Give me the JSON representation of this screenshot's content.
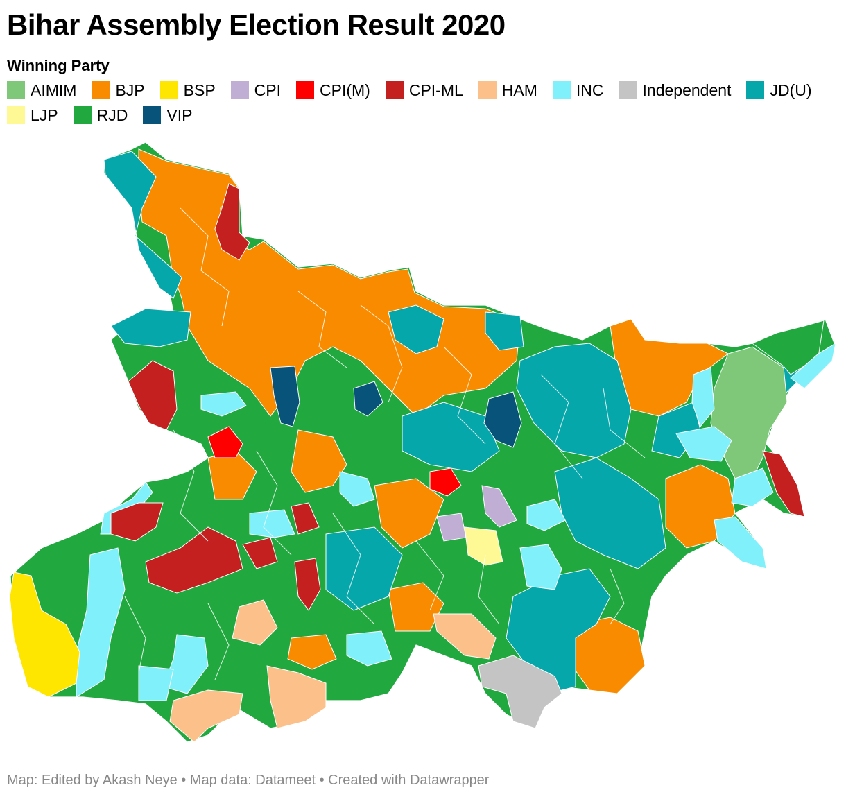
{
  "title": "Bihar Assembly Election Result 2020",
  "legend_title": "Winning Party",
  "legend": [
    {
      "label": "AIMIM",
      "color": "#7fc87a"
    },
    {
      "label": "BJP",
      "color": "#f88b00"
    },
    {
      "label": "BSP",
      "color": "#ffe600"
    },
    {
      "label": "CPI",
      "color": "#c0aed4"
    },
    {
      "label": "CPI(M)",
      "color": "#ff0000"
    },
    {
      "label": "CPI-ML",
      "color": "#c4201f"
    },
    {
      "label": "HAM",
      "color": "#fcc08b"
    },
    {
      "label": "INC",
      "color": "#80f0fb"
    },
    {
      "label": "Independent",
      "color": "#c4c4c4"
    },
    {
      "label": "JD(U)",
      "color": "#06a7aa"
    },
    {
      "label": "LJP",
      "color": "#fff995"
    },
    {
      "label": "RJD",
      "color": "#21a940"
    },
    {
      "label": "VIP",
      "color": "#07537a"
    }
  ],
  "footer": "Map: Edited by Akash Neye • Map data: Datameet • Created with Datawrapper"
}
